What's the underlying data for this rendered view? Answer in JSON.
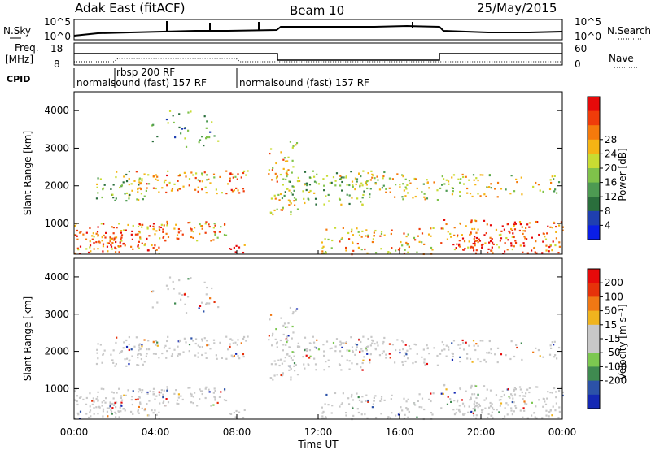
{
  "header": {
    "station": "Adak East (fitACF)",
    "beam": "Beam 10",
    "date": "25/May/2015"
  },
  "top_panels": {
    "nsky_label": "N.Sky",
    "nsearch_label": "N.Search",
    "nsky_ticks": [
      "10^5",
      "10^0"
    ],
    "nsearch_ticks": [
      "10^5",
      "10^0"
    ],
    "freq_label_1": "Freq.",
    "freq_label_2": "[MHz]",
    "freq_ticks": [
      "18",
      "8"
    ],
    "nave_label": "Nave",
    "nave_ticks": [
      "60",
      "0"
    ],
    "cpid_label": "CPID",
    "cpid_segments": [
      "normalsound (fast) 157 RF",
      "rbsp 200 RF",
      "normalsound (fast) 157 RF"
    ]
  },
  "colors": {
    "power_scale": [
      "#0a1ee6",
      "#1f3fb0",
      "#2a6e3c",
      "#4d9a52",
      "#7fc24a",
      "#c8dc32",
      "#f5b414",
      "#f57a0c",
      "#f03c0a",
      "#e60a0a"
    ],
    "velocity_scale": [
      "#1428b4",
      "#2c52a8",
      "#3f8a50",
      "#7cc850",
      "#c8c8c8",
      "#c8c8c8",
      "#f0b41e",
      "#f07814",
      "#e6320a",
      "#e60a0a"
    ]
  },
  "x_axis": {
    "title": "Time UT",
    "ticks": [
      "00:00",
      "04:00",
      "08:00",
      "12:00",
      "16:00",
      "20:00",
      "00:00"
    ]
  },
  "chart_data": [
    {
      "type": "heatmap",
      "title": "",
      "xlabel": "",
      "ylabel": "Slant Range [km]",
      "yticks": [
        "1000",
        "2000",
        "3000",
        "4000"
      ],
      "ylim": [
        180,
        4500
      ],
      "xlim_hours": [
        0,
        24
      ],
      "colorbar_label": "Power [dB]",
      "colorbar_ticks": [
        "4",
        "8",
        "12",
        "16",
        "20",
        "24",
        "28"
      ]
    },
    {
      "type": "heatmap",
      "title": "",
      "xlabel": "Time UT",
      "ylabel": "Slant Range [km]",
      "yticks": [
        "1000",
        "2000",
        "3000",
        "4000"
      ],
      "ylim": [
        180,
        4500
      ],
      "xlim_hours": [
        0,
        24
      ],
      "colorbar_label": "Velocity [m s⁻¹]",
      "colorbar_ticks": [
        "200",
        "100",
        "50",
        "15",
        "-15",
        "-50",
        "-100",
        "-200"
      ]
    }
  ]
}
